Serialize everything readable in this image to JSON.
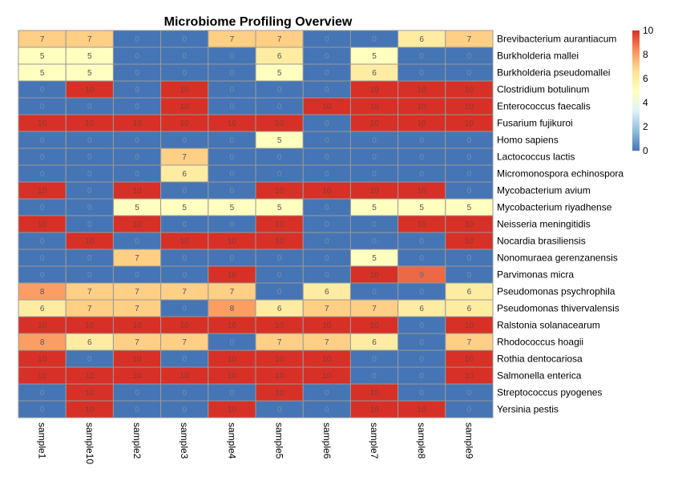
{
  "chart_data": {
    "type": "heatmap",
    "title": "Microbiome Profiling Overview",
    "columns": [
      "sample1",
      "sample10",
      "sample2",
      "sample3",
      "sample4",
      "sample5",
      "sample6",
      "sample7",
      "sample8",
      "sample9"
    ],
    "rows": [
      "Brevibacterium aurantiacum",
      "Burkholderia mallei",
      "Burkholderia pseudomallei",
      "Clostridium botulinum",
      "Enterococcus faecalis",
      "Fusarium fujikuroi",
      "Homo sapiens",
      "Lactococcus lactis",
      "Micromonospora echinospora",
      "Mycobacterium avium",
      "Mycobacterium riyadhense",
      "Neisseria meningitidis",
      "Nocardia brasiliensis",
      "Nonomuraea gerenzanensis",
      "Parvimonas micra",
      "Pseudomonas psychrophila",
      "Pseudomonas thivervalensis",
      "Ralstonia solanacearum",
      "Rhodococcus hoagii",
      "Rothia dentocariosa",
      "Salmonella enterica",
      "Streptococcus pyogenes",
      "Yersinia pestis"
    ],
    "values": [
      [
        7,
        7,
        0,
        0,
        7,
        7,
        0,
        0,
        6,
        7
      ],
      [
        5,
        5,
        0,
        0,
        0,
        6,
        0,
        5,
        0,
        0
      ],
      [
        5,
        5,
        0,
        0,
        0,
        5,
        0,
        6,
        0,
        0
      ],
      [
        0,
        10,
        0,
        10,
        0,
        0,
        0,
        10,
        10,
        10
      ],
      [
        0,
        0,
        0,
        10,
        0,
        0,
        10,
        10,
        10,
        10
      ],
      [
        10,
        10,
        10,
        10,
        10,
        10,
        0,
        10,
        10,
        10
      ],
      [
        0,
        0,
        0,
        0,
        0,
        5,
        0,
        0,
        0,
        0
      ],
      [
        0,
        0,
        0,
        7,
        0,
        0,
        0,
        0,
        0,
        0
      ],
      [
        0,
        0,
        0,
        6,
        0,
        0,
        0,
        0,
        0,
        0
      ],
      [
        10,
        0,
        10,
        0,
        0,
        10,
        10,
        10,
        10,
        0
      ],
      [
        0,
        0,
        5,
        5,
        5,
        5,
        0,
        5,
        5,
        5
      ],
      [
        10,
        0,
        10,
        0,
        0,
        10,
        0,
        0,
        10,
        10
      ],
      [
        0,
        10,
        0,
        10,
        10,
        10,
        0,
        0,
        0,
        10
      ],
      [
        0,
        0,
        7,
        0,
        0,
        0,
        0,
        5,
        0,
        0
      ],
      [
        0,
        0,
        0,
        0,
        10,
        0,
        0,
        10,
        9,
        0
      ],
      [
        8,
        7,
        7,
        7,
        7,
        0,
        6,
        0,
        0,
        6
      ],
      [
        6,
        7,
        7,
        0,
        8,
        6,
        7,
        7,
        6,
        6
      ],
      [
        10,
        10,
        10,
        10,
        10,
        10,
        10,
        10,
        0,
        10
      ],
      [
        8,
        6,
        7,
        7,
        0,
        7,
        7,
        6,
        0,
        7
      ],
      [
        10,
        0,
        10,
        0,
        10,
        10,
        10,
        0,
        0,
        10
      ],
      [
        10,
        10,
        10,
        10,
        10,
        10,
        10,
        0,
        0,
        10
      ],
      [
        0,
        10,
        0,
        0,
        0,
        10,
        0,
        10,
        0,
        0
      ],
      [
        0,
        10,
        0,
        0,
        10,
        0,
        0,
        10,
        10,
        0
      ]
    ],
    "value_range": [
      0,
      10
    ],
    "legend": {
      "placement": "top-right",
      "ticks": [
        "10",
        "8",
        "6",
        "4",
        "2",
        "0"
      ]
    },
    "colors": {
      "scale": [
        "#4575b4",
        "#91bfdb",
        "#e0f3f8",
        "#ffffbf",
        "#fee090",
        "#fc8d59",
        "#d73027"
      ],
      "cell_border": "#999999"
    }
  }
}
